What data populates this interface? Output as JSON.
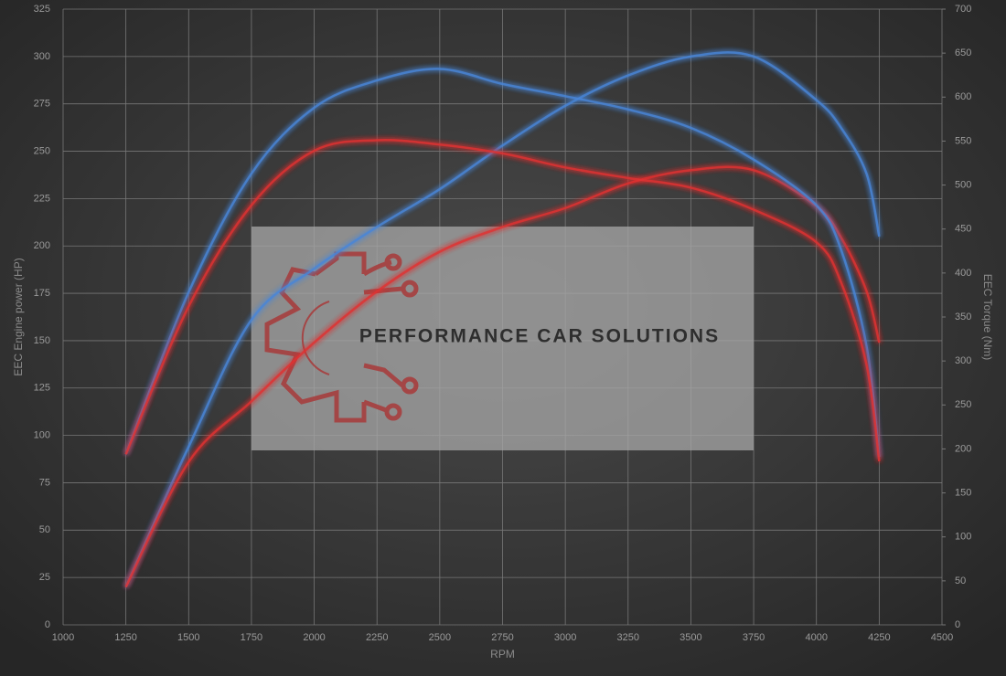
{
  "chart_data": {
    "type": "line",
    "xlabel": "RPM",
    "ylabel": "EEC Engine power (HP)",
    "y2label": "EEC Torque (Nm)",
    "watermark": "PERFORMANCE CAR SOLUTIONS",
    "x": [
      1250,
      1500,
      1750,
      2000,
      2250,
      2500,
      2750,
      3000,
      3250,
      3500,
      3750,
      4000,
      4100,
      4200,
      4250
    ],
    "xlim": [
      1000,
      4500
    ],
    "xticks": [
      1000,
      1250,
      1500,
      1750,
      2000,
      2250,
      2500,
      2750,
      3000,
      3250,
      3500,
      3750,
      4000,
      4250,
      4500
    ],
    "ylim": [
      0,
      325
    ],
    "yticks": [
      0,
      25,
      50,
      75,
      100,
      125,
      150,
      175,
      200,
      225,
      250,
      275,
      300,
      325
    ],
    "y2lim": [
      0,
      700
    ],
    "y2ticks": [
      0,
      50,
      100,
      150,
      200,
      250,
      300,
      350,
      400,
      450,
      500,
      550,
      600,
      650,
      700
    ],
    "grid": true,
    "series": [
      {
        "color": "#4a86d8",
        "values": [
          20,
          94,
          161,
          188,
          210,
          230,
          253,
          274,
          290,
          300,
          300,
          277,
          262,
          238,
          205
        ]
      },
      {
        "color": "#e03030",
        "values": [
          20,
          86,
          118,
          149,
          176,
          197,
          210,
          220,
          233,
          240,
          240,
          221,
          204,
          176,
          149
        ]
      },
      {
        "color": "#4a86d8",
        "axis": "y2",
        "values": [
          194,
          378,
          513,
          588,
          619,
          632,
          615,
          601,
          586,
          565,
          529,
          477,
          425,
          316,
          191
        ]
      },
      {
        "color": "#e03030",
        "axis": "y2",
        "values": [
          194,
          362,
          477,
          539,
          551,
          546,
          536,
          520,
          508,
          497,
          472,
          435,
          388,
          295,
          186
        ]
      }
    ]
  }
}
